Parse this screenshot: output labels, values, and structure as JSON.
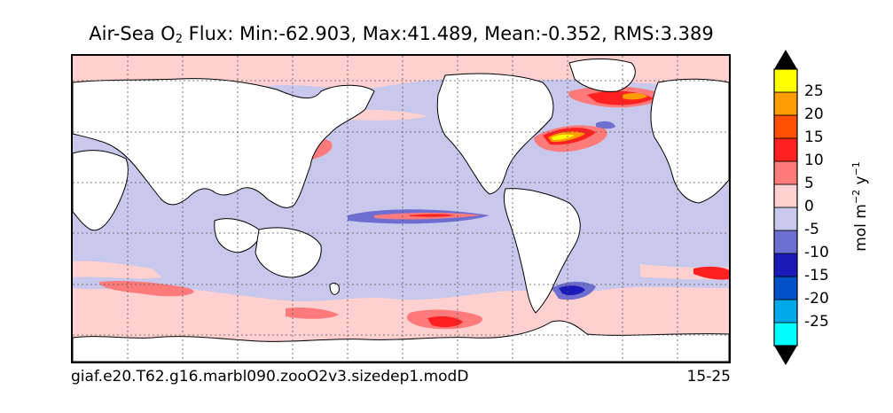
{
  "title": {
    "prefix": "Air-Sea O",
    "subscript": "2",
    "suffix": " Flux: Min:-62.903, Max:41.489, Mean:-0.352, RMS:3.389"
  },
  "caption": {
    "run_name": "giaf.e20.T62.g16.marbl090.zooO2v3.sizedep1.modD",
    "years": "15-25"
  },
  "colorbar": {
    "units": {
      "base1": "mol m",
      "exp1": "−2",
      "base2": " y",
      "exp2": "−1"
    },
    "levels": [
      {
        "min": -30,
        "max": -25,
        "color": "#00ffff"
      },
      {
        "min": -25,
        "max": -20,
        "color": "#00aaea"
      },
      {
        "min": -20,
        "max": -15,
        "color": "#0050c8"
      },
      {
        "min": -15,
        "max": -10,
        "color": "#1a1ab8"
      },
      {
        "min": -10,
        "max": -5,
        "color": "#6e6ed0"
      },
      {
        "min": -5,
        "max": 0,
        "color": "#c8c8ec"
      },
      {
        "min": 0,
        "max": 5,
        "color": "#ffd0d0"
      },
      {
        "min": 5,
        "max": 10,
        "color": "#ff7a7a"
      },
      {
        "min": 10,
        "max": 15,
        "color": "#ff2020"
      },
      {
        "min": 15,
        "max": 20,
        "color": "#ff5000"
      },
      {
        "min": 20,
        "max": 25,
        "color": "#ff9c00"
      },
      {
        "min": 25,
        "max": 30,
        "color": "#ffff00"
      }
    ],
    "under_color": "#000000",
    "over_color": "#000000",
    "tick_labels": [
      "25",
      "20",
      "15",
      "10",
      "5",
      "0",
      "-5",
      "-10",
      "-15",
      "-20",
      "-25"
    ]
  },
  "colors": {
    "land": "#ffffff",
    "coastline": "#000000",
    "gridline": "#555555"
  }
}
